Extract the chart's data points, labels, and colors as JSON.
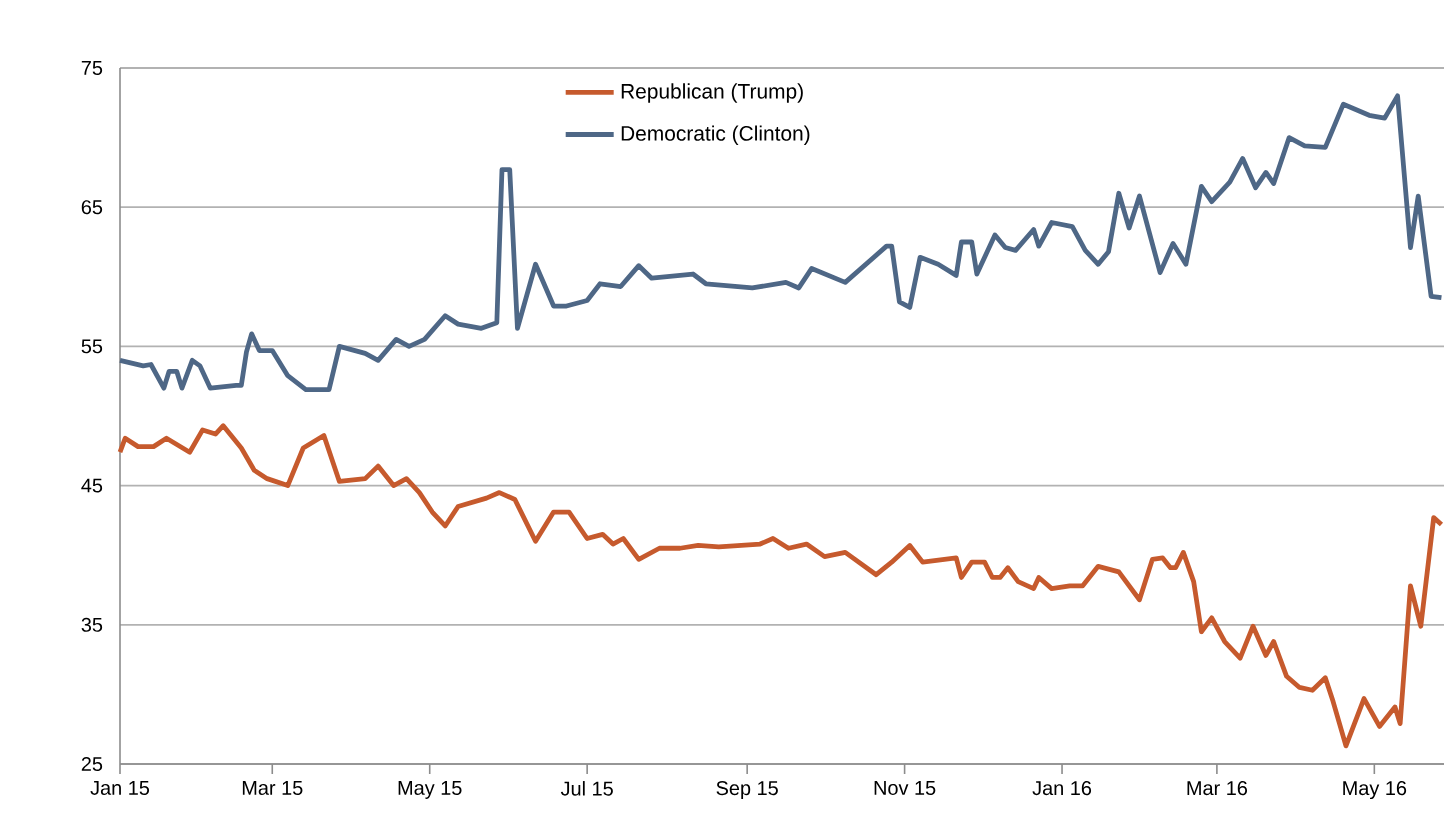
{
  "chart_data": {
    "type": "line",
    "xlim": [
      "2015-01-01",
      "2016-05-28"
    ],
    "ylim": [
      25,
      75
    ],
    "yticks": [
      25,
      35,
      45,
      55,
      65,
      75
    ],
    "xticks": [
      {
        "value": "2015-01-01",
        "label": "Jan 15"
      },
      {
        "value": "2015-03-01",
        "label": "Mar 15"
      },
      {
        "value": "2015-05-01",
        "label": "May 15"
      },
      {
        "value": "2015-07-01",
        "label": "Jul 15"
      },
      {
        "value": "2015-09-01",
        "label": "Sep 15"
      },
      {
        "value": "2015-11-01",
        "label": "Nov 15"
      },
      {
        "value": "2016-01-01",
        "label": "Jan 16"
      },
      {
        "value": "2016-03-01",
        "label": "Mar 16"
      },
      {
        "value": "2016-05-01",
        "label": "May 16"
      }
    ],
    "grid": "y",
    "legend": "top",
    "marker": "none",
    "line_style": "solid",
    "series": [
      {
        "name": "Republican (Trump)",
        "color": "#c65a2d",
        "x": [
          "2015-01-01",
          "2015-01-03",
          "2015-01-08",
          "2015-01-14",
          "2015-01-19",
          "2015-01-28",
          "2015-02-02",
          "2015-02-07",
          "2015-02-10",
          "2015-02-17",
          "2015-02-22",
          "2015-02-27",
          "2015-03-07",
          "2015-03-13",
          "2015-03-21",
          "2015-03-27",
          "2015-04-06",
          "2015-04-11",
          "2015-04-17",
          "2015-04-22",
          "2015-04-27",
          "2015-05-02",
          "2015-05-07",
          "2015-05-12",
          "2015-05-23",
          "2015-05-28",
          "2015-06-03",
          "2015-06-11",
          "2015-06-18",
          "2015-06-24",
          "2015-07-01",
          "2015-07-07",
          "2015-07-11",
          "2015-07-15",
          "2015-07-21",
          "2015-07-29",
          "2015-08-06",
          "2015-08-13",
          "2015-08-21",
          "2015-09-06",
          "2015-09-11",
          "2015-09-17",
          "2015-09-24",
          "2015-10-01",
          "2015-10-09",
          "2015-10-21",
          "2015-10-27",
          "2015-11-03",
          "2015-11-08",
          "2015-11-21",
          "2015-11-23",
          "2015-11-27",
          "2015-12-02",
          "2015-12-05",
          "2015-12-08",
          "2015-12-11",
          "2015-12-15",
          "2015-12-21",
          "2015-12-23",
          "2015-12-28",
          "2016-01-04",
          "2016-01-09",
          "2016-01-15",
          "2016-01-23",
          "2016-01-31",
          "2016-02-05",
          "2016-02-09",
          "2016-02-12",
          "2016-02-14",
          "2016-02-17",
          "2016-02-21",
          "2016-02-24",
          "2016-02-28",
          "2016-03-04",
          "2016-03-10",
          "2016-03-15",
          "2016-03-20",
          "2016-03-23",
          "2016-03-28",
          "2016-04-02",
          "2016-04-07",
          "2016-04-12",
          "2016-04-15",
          "2016-04-20",
          "2016-04-27",
          "2016-05-03",
          "2016-05-09",
          "2016-05-11",
          "2016-05-15",
          "2016-05-19",
          "2016-05-24",
          "2016-05-27"
        ],
        "values": [
          47.4,
          48.4,
          47.8,
          47.8,
          48.4,
          47.4,
          49.0,
          48.7,
          49.3,
          47.7,
          46.1,
          45.5,
          45.0,
          47.7,
          48.6,
          45.3,
          45.5,
          46.4,
          45.0,
          45.5,
          44.5,
          43.1,
          42.1,
          43.5,
          44.1,
          44.5,
          44.0,
          41.0,
          43.1,
          43.1,
          41.2,
          41.5,
          40.8,
          41.2,
          39.7,
          40.5,
          40.5,
          40.7,
          40.6,
          40.8,
          41.2,
          40.5,
          40.8,
          39.9,
          40.2,
          38.6,
          39.5,
          40.7,
          39.5,
          39.8,
          38.4,
          39.5,
          39.5,
          38.4,
          38.4,
          39.1,
          38.1,
          37.6,
          38.4,
          37.6,
          37.8,
          37.8,
          39.2,
          38.8,
          36.8,
          39.7,
          39.8,
          39.1,
          39.1,
          40.2,
          38.1,
          34.5,
          35.5,
          33.8,
          32.6,
          34.9,
          32.8,
          33.8,
          31.3,
          30.5,
          30.3,
          31.2,
          29.5,
          26.3,
          29.7,
          27.7,
          29.1,
          27.9,
          37.8,
          34.9,
          42.7,
          42.2
        ]
      },
      {
        "name": "Democratic (Clinton)",
        "color": "#4e6786",
        "x": [
          "2015-01-01",
          "2015-01-10",
          "2015-01-13",
          "2015-01-18",
          "2015-01-20",
          "2015-01-23",
          "2015-01-25",
          "2015-01-29",
          "2015-02-01",
          "2015-02-05",
          "2015-02-15",
          "2015-02-17",
          "2015-02-19",
          "2015-02-21",
          "2015-02-24",
          "2015-03-01",
          "2015-03-07",
          "2015-03-14",
          "2015-03-23",
          "2015-03-27",
          "2015-04-06",
          "2015-04-11",
          "2015-04-18",
          "2015-04-23",
          "2015-04-29",
          "2015-05-07",
          "2015-05-12",
          "2015-05-21",
          "2015-05-27",
          "2015-05-29",
          "2015-06-01",
          "2015-06-04",
          "2015-06-11",
          "2015-06-18",
          "2015-06-23",
          "2015-07-01",
          "2015-07-06",
          "2015-07-14",
          "2015-07-21",
          "2015-07-26",
          "2015-08-11",
          "2015-08-16",
          "2015-09-03",
          "2015-09-16",
          "2015-09-21",
          "2015-09-26",
          "2015-10-09",
          "2015-10-25",
          "2015-10-27",
          "2015-10-30",
          "2015-11-03",
          "2015-11-07",
          "2015-11-14",
          "2015-11-21",
          "2015-11-23",
          "2015-11-27",
          "2015-11-29",
          "2015-12-06",
          "2015-12-10",
          "2015-12-14",
          "2015-12-21",
          "2015-12-23",
          "2015-12-28",
          "2016-01-05",
          "2016-01-10",
          "2016-01-15",
          "2016-01-19",
          "2016-01-23",
          "2016-01-27",
          "2016-01-31",
          "2016-02-08",
          "2016-02-13",
          "2016-02-18",
          "2016-02-24",
          "2016-02-28",
          "2016-03-06",
          "2016-03-11",
          "2016-03-16",
          "2016-03-20",
          "2016-03-23",
          "2016-03-29",
          "2016-04-04",
          "2016-04-12",
          "2016-04-19",
          "2016-04-29",
          "2016-05-05",
          "2016-05-10",
          "2016-05-15",
          "2016-05-18",
          "2016-05-23",
          "2016-05-27"
        ],
        "values": [
          54.0,
          53.6,
          53.7,
          52.0,
          53.2,
          53.2,
          52.0,
          54.0,
          53.6,
          52.0,
          52.2,
          52.2,
          54.6,
          55.9,
          54.7,
          54.7,
          52.9,
          51.9,
          51.9,
          55.0,
          54.5,
          54.0,
          55.5,
          55.0,
          55.5,
          57.2,
          56.6,
          56.3,
          56.7,
          67.7,
          67.7,
          56.3,
          60.9,
          57.9,
          57.9,
          58.3,
          59.5,
          59.3,
          60.8,
          59.9,
          60.2,
          59.5,
          59.2,
          59.6,
          59.2,
          60.6,
          59.6,
          62.2,
          62.2,
          58.2,
          57.8,
          61.4,
          60.9,
          60.1,
          62.5,
          62.5,
          60.2,
          63.0,
          62.1,
          61.9,
          63.4,
          62.2,
          63.9,
          63.6,
          61.9,
          60.9,
          61.8,
          66.0,
          63.5,
          65.8,
          60.3,
          62.4,
          60.9,
          66.5,
          65.4,
          66.8,
          68.5,
          66.4,
          67.5,
          66.7,
          70.0,
          69.4,
          69.3,
          72.4,
          71.6,
          71.4,
          73.0,
          62.1,
          65.8,
          58.6,
          58.5
        ]
      }
    ]
  }
}
